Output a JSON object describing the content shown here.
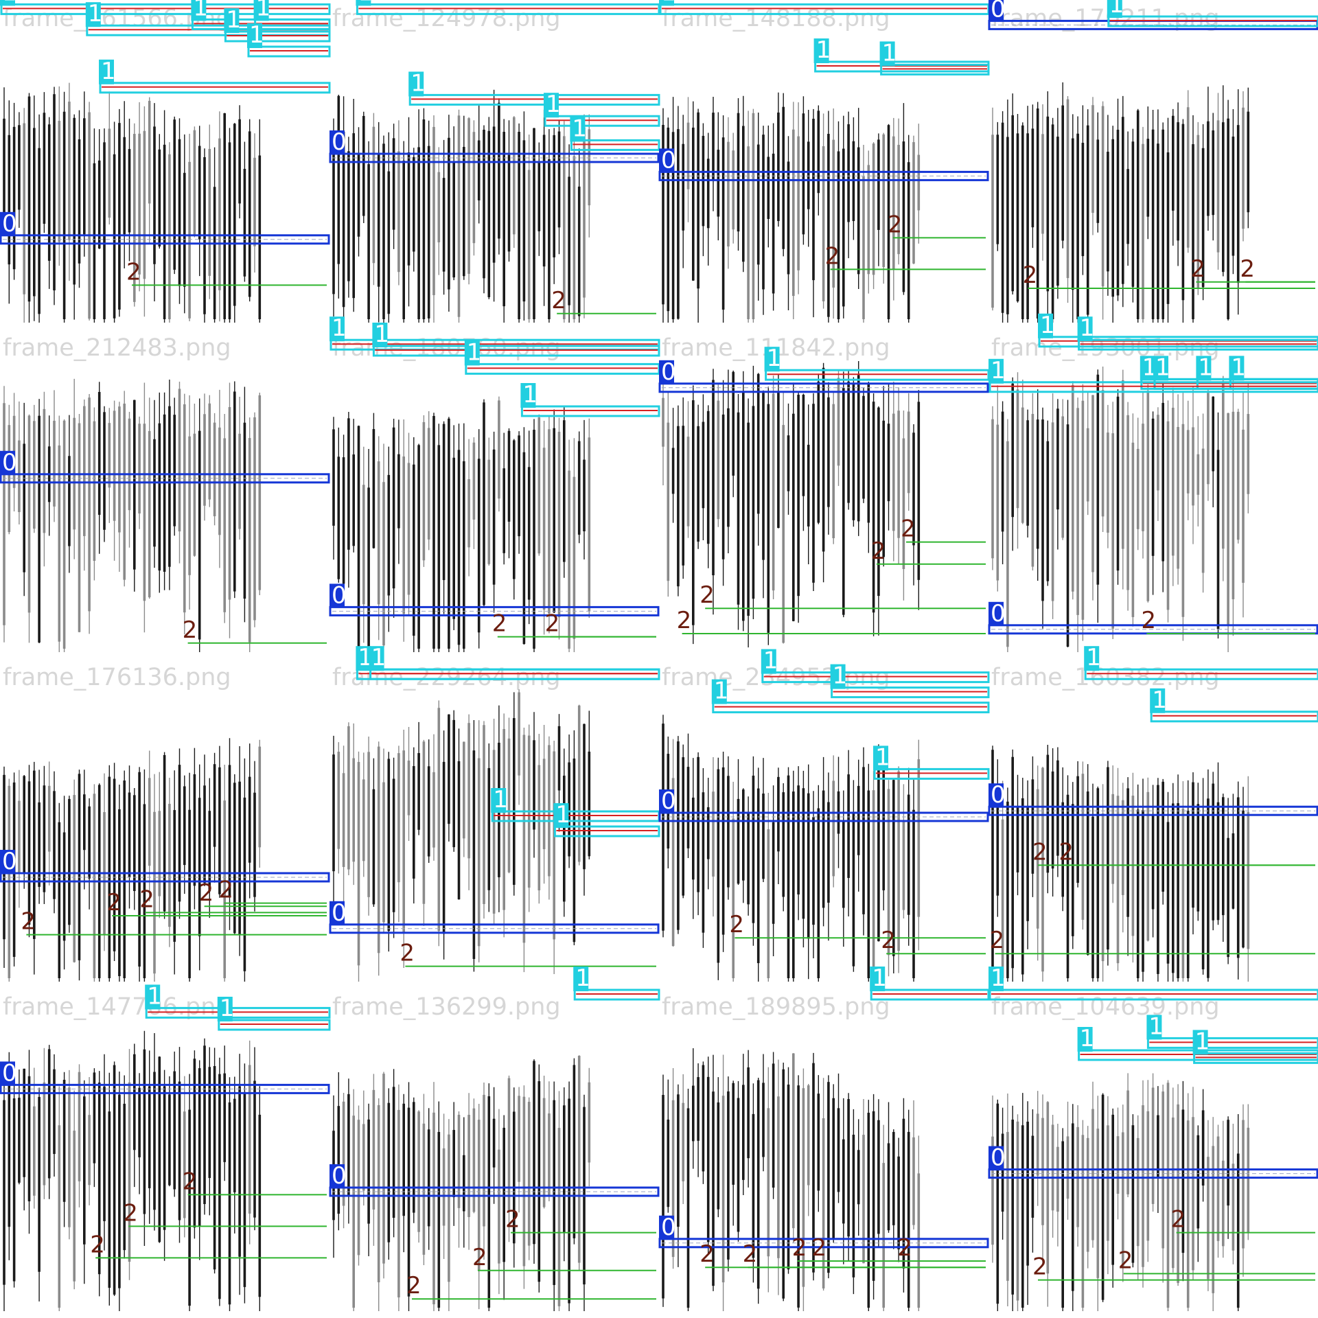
{
  "colors": {
    "background": "#ffffff",
    "candle_dark": "#1a1a1a",
    "candle_gray": "#8a8a8a",
    "title_gray": "#d6d6d6",
    "resistance_box": "#22cfe0",
    "resistance_line": "#d62020",
    "zero_box": "#1536d6",
    "support_line": "#2fb52f",
    "support_label": "#6b1d0f"
  },
  "legend_labels": {
    "zero": "0",
    "one": "1",
    "two": "2"
  },
  "frames": [
    {
      "title": "frame_161566.png",
      "tone": "dark",
      "seed": 11,
      "zero": [
        0.77
      ],
      "ones": [
        [
          0.01,
          0
        ],
        [
          0.08,
          0.26
        ],
        [
          0.06,
          0.58
        ],
        [
          0.1,
          0.68
        ],
        [
          0.06,
          0.77
        ],
        [
          0.15,
          0.75
        ],
        [
          0.27,
          0.3
        ]
      ],
      "twos": [
        [
          0.89,
          0.4
        ]
      ]
    },
    {
      "title": "frame_124978.png",
      "tone": "dark",
      "seed": 23,
      "zero": [
        0.5
      ],
      "ones": [
        [
          0.01,
          0.08
        ],
        [
          0.31,
          0.24
        ],
        [
          0.38,
          0.65
        ],
        [
          0.46,
          0.73
        ]
      ],
      "twos": [
        [
          0.98,
          0.69
        ]
      ]
    },
    {
      "title": "frame_148188.png",
      "tone": "dark",
      "seed": 37,
      "zero": [
        0.56
      ],
      "ones": [
        [
          0.01,
          0
        ],
        [
          0.2,
          0.47
        ],
        [
          0.21,
          0.67
        ]
      ],
      "twos": [
        [
          0.74,
          0.71
        ],
        [
          0.84,
          0.52
        ]
      ]
    },
    {
      "title": "frame_170211.png",
      "tone": "dark",
      "seed": 41,
      "zero": [
        0.06
      ],
      "ones": [
        [
          0.05,
          0.36
        ]
      ],
      "twos": [
        [
          0.88,
          0.63
        ],
        [
          0.88,
          0.78
        ],
        [
          0.9,
          0.12
        ]
      ]
    },
    {
      "title": "frame_212483.png",
      "tone": "gray",
      "seed": 53,
      "zero": [
        0.47
      ],
      "ones": [],
      "twos": [
        [
          0.98,
          0.57
        ]
      ]
    },
    {
      "title": "frame_180760.png",
      "tone": "dark",
      "seed": 67,
      "zero": [
        0.91
      ],
      "ones": [
        [
          0.03,
          0
        ],
        [
          0.05,
          0.13
        ],
        [
          0.11,
          0.41
        ],
        [
          0.25,
          0.58
        ]
      ],
      "twos": [
        [
          0.96,
          0.51
        ],
        [
          0.96,
          0.67
        ]
      ]
    },
    {
      "title": "frame_111842.png",
      "tone": "dark",
      "seed": 71,
      "zero": [
        0.17
      ],
      "ones": [
        [
          0.13,
          0.32
        ]
      ],
      "twos": [
        [
          0.66,
          0.75
        ],
        [
          0.73,
          0.66
        ],
        [
          0.87,
          0.14
        ],
        [
          0.95,
          0.07
        ]
      ]
    },
    {
      "title": "frame_193001.png",
      "tone": "gray",
      "seed": 83,
      "zero": [
        0.97
      ],
      "ones": [
        [
          0.02,
          0.15
        ],
        [
          0.03,
          0.27
        ],
        [
          0.16,
          0.46
        ],
        [
          0.16,
          0.5
        ],
        [
          0.16,
          0.63
        ],
        [
          0.16,
          0.73
        ],
        [
          0.17,
          0.0
        ]
      ],
      "twos": [
        [
          0.95,
          0.48
        ]
      ]
    },
    {
      "title": "frame_176136.png",
      "tone": "dark",
      "seed": 97,
      "zero": [
        0.7
      ],
      "ones": [],
      "twos": [
        [
          0.86,
          0.08
        ],
        [
          0.8,
          0.34
        ],
        [
          0.79,
          0.44
        ],
        [
          0.77,
          0.62
        ],
        [
          0.76,
          0.68
        ]
      ]
    },
    {
      "title": "frame_229264.png",
      "tone": "gray",
      "seed": 101,
      "zero": [
        0.87
      ],
      "ones": [
        [
          0.03,
          0.08
        ],
        [
          0.03,
          0.12
        ],
        [
          0.5,
          0.49
        ],
        [
          0.55,
          0.68
        ]
      ],
      "twos": [
        [
          0.96,
          0.23
        ]
      ]
    },
    {
      "title": "frame_234952.png",
      "tone": "dark",
      "seed": 113,
      "zero": [
        0.5
      ],
      "ones": [
        [
          0.04,
          0.31
        ],
        [
          0.09,
          0.52
        ],
        [
          0.14,
          0.16
        ],
        [
          0.36,
          0.65
        ]
      ],
      "twos": [
        [
          0.87,
          0.23
        ],
        [
          0.92,
          0.69
        ]
      ]
    },
    {
      "title": "frame_160382.png",
      "tone": "dark",
      "seed": 127,
      "zero": [
        0.48
      ],
      "ones": [
        [
          0.03,
          0.29
        ],
        [
          0.17,
          0.49
        ]
      ],
      "twos": [
        [
          0.64,
          0.15
        ],
        [
          0.64,
          0.23
        ],
        [
          0.92,
          0.02
        ]
      ]
    },
    {
      "title": "frame_147706.png",
      "tone": "dark",
      "seed": 131,
      "zero": [
        0.31
      ],
      "ones": [
        [
          0.06,
          0.44
        ],
        [
          0.1,
          0.66
        ]
      ],
      "twos": [
        [
          0.64,
          0.57
        ],
        [
          0.74,
          0.39
        ],
        [
          0.84,
          0.29
        ]
      ]
    },
    {
      "title": "frame_136299.png",
      "tone": "gray",
      "seed": 139,
      "zero": [
        0.65
      ],
      "ones": [
        [
          -0.03,
          0.74
        ]
      ],
      "twos": [
        [
          0.76,
          0.55
        ],
        [
          0.88,
          0.45
        ],
        [
          0.97,
          0.25
        ]
      ]
    },
    {
      "title": "frame_189895.png",
      "tone": "dark",
      "seed": 149,
      "zero": [
        0.82
      ],
      "ones": [
        [
          -0.01,
          0.64
        ]
      ],
      "twos": [
        [
          0.87,
          0.14
        ],
        [
          0.87,
          0.27
        ],
        [
          0.85,
          0.42
        ],
        [
          0.85,
          0.48
        ],
        [
          0.85,
          0.74
        ]
      ]
    },
    {
      "title": "frame_104639.png",
      "tone": "gray",
      "seed": 157,
      "zero": [
        0.59
      ],
      "ones": [
        [
          0.0,
          0
        ],
        [
          0.2,
          0.27
        ],
        [
          0.16,
          0.48
        ],
        [
          0.21,
          0.62
        ]
      ],
      "twos": [
        [
          0.76,
          0.57
        ],
        [
          0.91,
          0.15
        ],
        [
          0.89,
          0.41
        ]
      ]
    }
  ]
}
